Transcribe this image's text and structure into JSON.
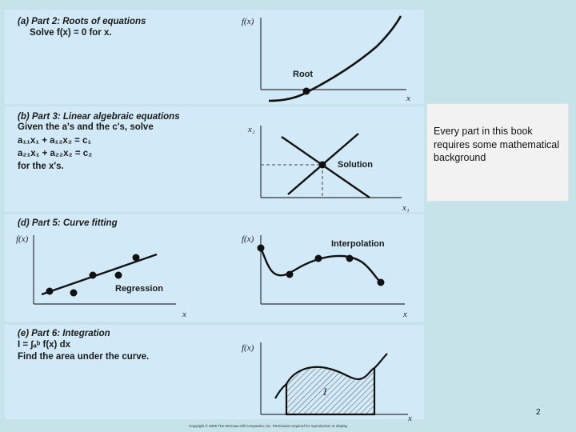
{
  "parts": [
    {
      "label": "(a)",
      "title": "Part 2: Roots of equations",
      "line1": "Solve f(x) = 0 for x.",
      "graph": {
        "ylabel": "f(x)",
        "xlabel": "x",
        "annotation": "Root"
      }
    },
    {
      "label": "(b)",
      "title": "Part 3: Linear algebraic equations",
      "line1": "Given the a's and the c's, solve",
      "eq1": "a₁₁x₁ + a₁₂x₂ = c₁",
      "eq2": "a₂₁x₁ + a₂₂x₂ = c₂",
      "line2": "for the x's.",
      "graph": {
        "ylabel": "x₂",
        "xlabel": "x₁",
        "annotation": "Solution"
      }
    },
    {
      "label": "(d)",
      "title": "Part 5: Curve fitting",
      "graph1": {
        "ylabel": "f(x)",
        "xlabel": "x",
        "annotation": "Regression"
      },
      "graph2": {
        "ylabel": "f(x)",
        "xlabel": "x",
        "annotation": "Interpolation"
      }
    },
    {
      "label": "(e)",
      "title": "Part 6: Integration",
      "line1": "I = ∫ₐᵇ f(x) dx",
      "line2": "Find the area under the curve.",
      "graph": {
        "ylabel": "f(x)",
        "xlabel": "x",
        "annotation": "I"
      }
    }
  ],
  "note": "Every part in this book requires some mathematical background",
  "page_number": "2",
  "copyright": "Copyright © 2006 The McGraw-Hill Companies, Inc. Permission required for reproduction or display."
}
